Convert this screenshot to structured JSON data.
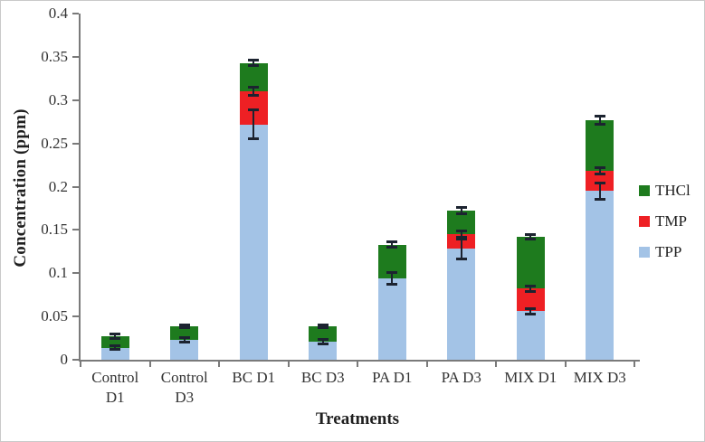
{
  "figure": {
    "y_axis_title": "Concentration (ppm)",
    "x_axis_title": "Treatments"
  },
  "legend": [
    {
      "label": "THCl",
      "color": "#1e7b1e"
    },
    {
      "label": "TMP",
      "color": "#ee2024"
    },
    {
      "label": "TPP",
      "color": "#a3c3e6"
    }
  ],
  "colors": {
    "thcl_green": "#1e7b1e",
    "tmp_red": "#ee2024",
    "tpp_blue": "#a3c3e6",
    "axis_gray": "#7a7a7a",
    "error_bar": "#1c2330"
  },
  "chart_data": {
    "type": "bar",
    "stacked": true,
    "title": "",
    "xlabel": "Treatments",
    "ylabel": "Concentration (ppm)",
    "ylim": [
      0,
      0.4
    ],
    "grid": false,
    "legend_position": "right",
    "y_ticks": [
      "0",
      "0.05",
      "0.1",
      "0.15",
      "0.2",
      "0.25",
      "0.3",
      "0.35",
      "0.4"
    ],
    "categories": [
      "Control D1",
      "Control D3",
      "BC D1",
      "BC D3",
      "PA D1",
      "PA D3",
      "MIX D1",
      "MIX D3"
    ],
    "x_tick_lines": [
      [
        "Control",
        "D1"
      ],
      [
        "Control",
        "D3"
      ],
      [
        "BC D1"
      ],
      [
        "BC D3"
      ],
      [
        "PA D1"
      ],
      [
        "PA D3"
      ],
      [
        "MIX D1"
      ],
      [
        "MIX D3"
      ]
    ],
    "series": [
      {
        "name": "TPP",
        "color": "#a3c3e6",
        "values": [
          0.014,
          0.023,
          0.272,
          0.021,
          0.094,
          0.128,
          0.056,
          0.195
        ],
        "errors": [
          0.003,
          0.003,
          0.017,
          0.003,
          0.007,
          0.012,
          0.004,
          0.01
        ]
      },
      {
        "name": "TMP",
        "color": "#ee2024",
        "values": [
          0,
          0,
          0.038,
          0,
          0,
          0.017,
          0.026,
          0.023
        ],
        "errors": [
          null,
          null,
          0.005,
          null,
          null,
          0.004,
          0.004,
          0.004
        ]
      },
      {
        "name": "THCl",
        "color": "#1e7b1e",
        "values": [
          0.013,
          0.016,
          0.033,
          0.018,
          0.039,
          0.027,
          0.06,
          0.059
        ],
        "errors": [
          0.003,
          0.002,
          0.004,
          0.002,
          0.004,
          0.004,
          0.003,
          0.005
        ]
      }
    ],
    "stack_totals": [
      0.027,
      0.039,
      0.343,
      0.039,
      0.133,
      0.172,
      0.142,
      0.277
    ]
  }
}
